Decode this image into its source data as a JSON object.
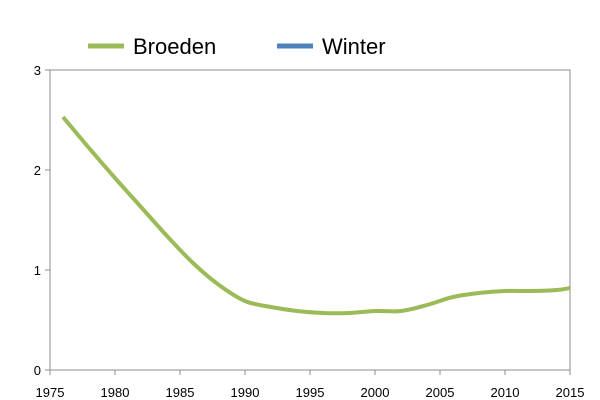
{
  "chart_data": {
    "type": "line",
    "title": "",
    "xlabel": "",
    "ylabel": "",
    "xlim": [
      1975,
      2015
    ],
    "ylim": [
      0,
      3
    ],
    "x_ticks": [
      "1975",
      "1980",
      "1985",
      "1990",
      "1995",
      "2000",
      "2005",
      "2010",
      "2015"
    ],
    "y_ticks": [
      "0",
      "1",
      "2",
      "3"
    ],
    "grid": false,
    "legend_position": "top",
    "series": [
      {
        "name": "Broeden",
        "color": "#9bbb59",
        "x": [
          1976,
          1978,
          1980,
          1982,
          1984,
          1986,
          1988,
          1990,
          1992,
          1994,
          1996,
          1998,
          2000,
          2002,
          2004,
          2006,
          2008,
          2010,
          2012,
          2014,
          2015
        ],
        "y": [
          2.53,
          2.22,
          1.92,
          1.63,
          1.34,
          1.07,
          0.85,
          0.69,
          0.63,
          0.59,
          0.57,
          0.57,
          0.59,
          0.59,
          0.65,
          0.73,
          0.77,
          0.79,
          0.79,
          0.8,
          0.82
        ]
      },
      {
        "name": "Winter",
        "color": "#4f81bd",
        "x": [],
        "y": []
      }
    ]
  }
}
